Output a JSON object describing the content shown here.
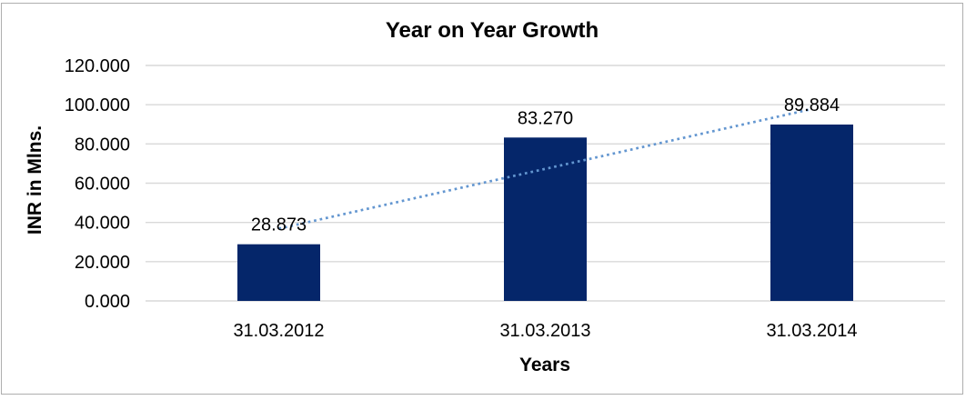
{
  "chart_data": {
    "type": "bar",
    "title": "Year on Year Growth",
    "xlabel": "Years",
    "ylabel": "INR in Mlns.",
    "categories": [
      "31.03.2012",
      "31.03.2013",
      "31.03.2014"
    ],
    "values": [
      28.873,
      83.27,
      89.884
    ],
    "data_labels": [
      "28.873",
      "83.270",
      "89.884"
    ],
    "y_ticks": [
      {
        "value": 0,
        "label": "0.000"
      },
      {
        "value": 20,
        "label": "20.000"
      },
      {
        "value": 40,
        "label": "40.000"
      },
      {
        "value": 60,
        "label": "60.000"
      },
      {
        "value": 80,
        "label": "80.000"
      },
      {
        "value": 100,
        "label": "100.000"
      },
      {
        "value": 120,
        "label": "120.000"
      }
    ],
    "ylim": [
      0,
      120
    ],
    "grid": "horizontal",
    "legend": "none",
    "trendline": {
      "kind": "linear",
      "style": "dotted",
      "endpoint_values": [
        36.8,
        97.8
      ]
    },
    "colors": {
      "bar": "#05266a",
      "gridline": "#d9d9d9",
      "trendline": "#6396d0",
      "text": "#000000",
      "border": "#aeaeae",
      "background": "#ffffff"
    }
  }
}
